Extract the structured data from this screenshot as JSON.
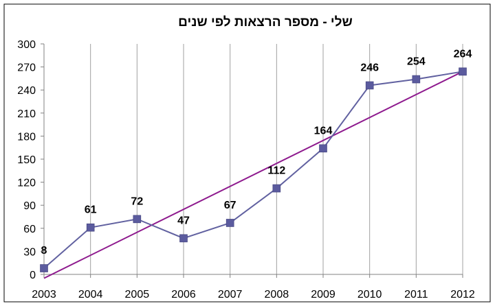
{
  "chart_data": {
    "type": "line",
    "title": "שלי - מספר הרצאות לפי שנים",
    "xlabel": "",
    "ylabel": "",
    "categories": [
      "2003",
      "2004",
      "2005",
      "2006",
      "2007",
      "2008",
      "2009",
      "2010",
      "2011",
      "2012"
    ],
    "series": [
      {
        "values": [
          8,
          61,
          72,
          47,
          67,
          112,
          164,
          246,
          254,
          264
        ],
        "marker": "square"
      }
    ],
    "trendline": {
      "type": "linear",
      "start_value": -5,
      "end_value": 264
    },
    "data_labels": [
      "8",
      "61",
      "72",
      "47",
      "67",
      "112",
      "164",
      "246",
      "254",
      "264"
    ],
    "ylim": [
      0,
      300
    ],
    "y_ticks": [
      "0",
      "30",
      "60",
      "90",
      "120",
      "150",
      "180",
      "210",
      "240",
      "270",
      "300"
    ],
    "grid": {
      "vertical": true,
      "horizontal": false
    },
    "colors": {
      "series": "#6161A0",
      "marker": "#5B5B9E",
      "trendline": "#8E1A8E",
      "grid": "#A0A0A0",
      "axis": "#808080"
    }
  }
}
